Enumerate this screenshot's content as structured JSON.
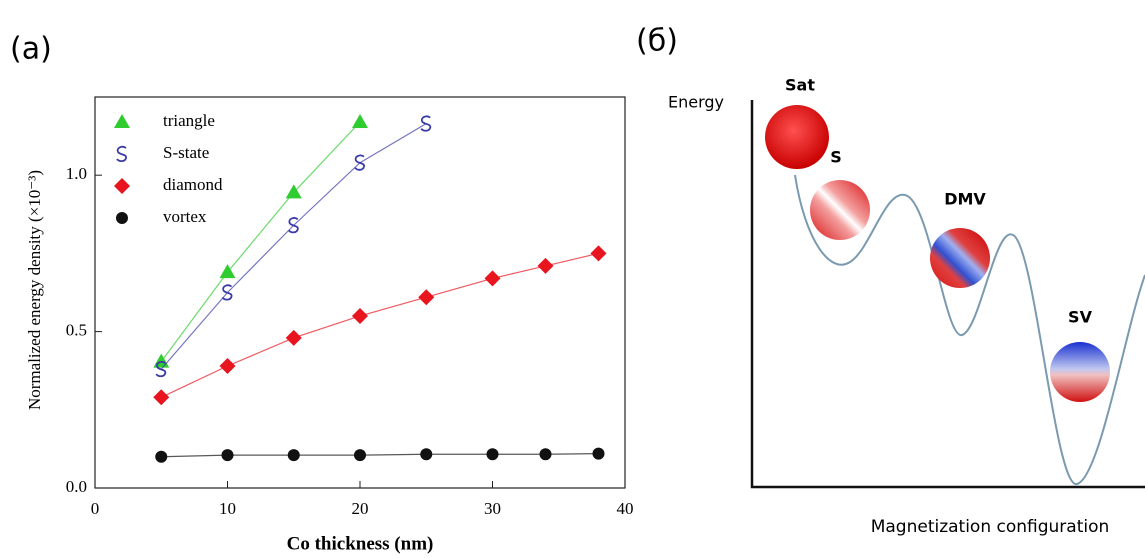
{
  "chart_data": {
    "type": "scatter",
    "panel_label": "(a)",
    "x_label": "Co thickness (nm)",
    "y_label": "Normalized energy density (×10⁻³)",
    "xlim": [
      0,
      40
    ],
    "xticks": [
      0,
      10,
      20,
      30,
      40
    ],
    "ylim": [
      0,
      1.25
    ],
    "yticks": [
      {
        "value": 0,
        "label": "0.0"
      },
      {
        "value": 0.5,
        "label": "0.5"
      },
      {
        "value": 1,
        "label": "1.0"
      }
    ],
    "legend": "upper left",
    "series": [
      {
        "name": "triangle",
        "color": "#2ecc2e",
        "marker": "triangle",
        "x": [
          5,
          10,
          15,
          20
        ],
        "values": [
          0.404,
          0.69,
          0.945,
          1.17
        ]
      },
      {
        "name": "S-state",
        "color": "#3a3aa8",
        "marker": "s-glyph",
        "x": [
          5,
          10,
          15,
          20,
          25
        ],
        "values": [
          0.38,
          0.625,
          0.84,
          1.04,
          1.165
        ]
      },
      {
        "name": "diamond",
        "color": "#e8141e",
        "marker": "diamond",
        "x": [
          5,
          10,
          15,
          20,
          25,
          30,
          34,
          38
        ],
        "values": [
          0.29,
          0.39,
          0.48,
          0.55,
          0.61,
          0.67,
          0.71,
          0.75
        ]
      },
      {
        "name": "vortex",
        "color": "#111111",
        "marker": "circle",
        "x": [
          5,
          10,
          15,
          20,
          25,
          30,
          34,
          38
        ],
        "values": [
          0.1,
          0.105,
          0.105,
          0.105,
          0.108,
          0.108,
          0.108,
          0.11
        ]
      }
    ]
  },
  "diagram": {
    "panel_label": "(б)",
    "y_axis_label": "Energy",
    "x_axis_label": "Magnetization configuration",
    "states": [
      {
        "label": "Sat"
      },
      {
        "label": "S"
      },
      {
        "label": "DMV"
      },
      {
        "label": "SV"
      }
    ]
  }
}
